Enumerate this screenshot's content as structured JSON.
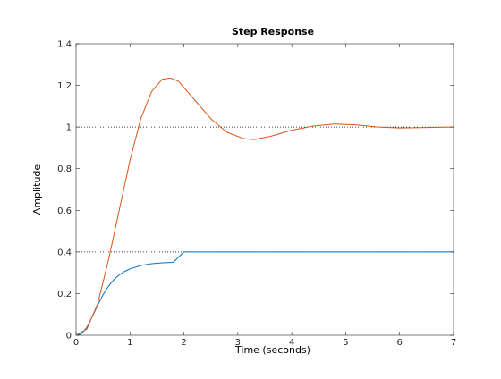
{
  "chart_data": {
    "type": "line",
    "title": "Step Response",
    "xlabel": "Time (seconds)",
    "ylabel": "Amplitude",
    "xlim": [
      0,
      7
    ],
    "ylim": [
      0,
      1.4
    ],
    "x_ticks": [
      0,
      1,
      2,
      3,
      4,
      5,
      6,
      7
    ],
    "y_ticks": [
      0,
      0.2,
      0.4,
      0.6,
      0.8,
      1,
      1.2,
      1.4
    ],
    "x_tick_labels": [
      "0",
      "1",
      "2",
      "3",
      "4",
      "5",
      "6",
      "7"
    ],
    "y_tick_labels": [
      "0",
      "0.2",
      "0.4",
      "0.6",
      "0.8",
      "1",
      "1.2",
      "1.4"
    ],
    "grid": false,
    "reference_lines": [
      {
        "y": 1.0,
        "style": "dotted",
        "color": "#000000"
      },
      {
        "y": 0.4,
        "style": "dotted",
        "color": "#000000"
      }
    ],
    "series": [
      {
        "color": "#0072bd",
        "x": [
          0,
          0.1,
          0.2,
          0.3,
          0.4,
          0.5,
          0.6,
          0.7,
          0.8,
          0.9,
          1.0,
          1.2,
          1.4,
          1.6,
          1.8,
          2.0,
          3.0,
          4.0,
          5.0,
          6.0,
          7.0
        ],
        "y": [
          0,
          0.0065,
          0.0377,
          0.0884,
          0.1438,
          0.194,
          0.235,
          0.2665,
          0.2896,
          0.3066,
          0.3186,
          0.335,
          0.3437,
          0.3479,
          0.35,
          0.3999,
          0.4,
          0.4,
          0.4,
          0.4,
          0.4
        ]
      },
      {
        "color": "#d95319",
        "x": [
          0,
          0.2,
          0.4,
          0.6,
          0.8,
          1.0,
          1.2,
          1.4,
          1.6,
          1.75,
          1.9,
          2.2,
          2.5,
          2.8,
          3.1,
          3.3,
          3.6,
          4.0,
          4.4,
          4.8,
          5.2,
          5.6,
          6.0,
          6.5,
          7.0
        ],
        "y": [
          0,
          0.03,
          0.15,
          0.36,
          0.6,
          0.84,
          1.04,
          1.17,
          1.23,
          1.235,
          1.22,
          1.13,
          1.04,
          0.975,
          0.945,
          0.94,
          0.955,
          0.985,
          1.005,
          1.015,
          1.01,
          1.0,
          0.996,
          0.998,
          1.0
        ]
      }
    ]
  }
}
